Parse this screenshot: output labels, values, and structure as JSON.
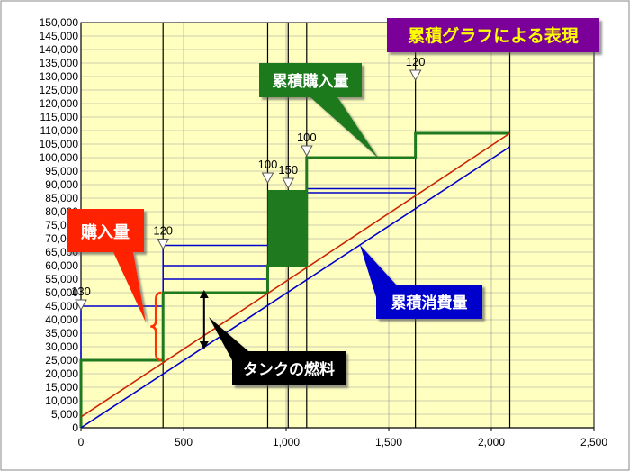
{
  "chart_data": {
    "type": "line",
    "title": "累積グラフによる表現",
    "xlim": [
      0,
      2500
    ],
    "ylim": [
      0,
      150000
    ],
    "x_ticks": [
      0,
      500,
      1000,
      1500,
      2000,
      2500
    ],
    "x_tick_labels": [
      "0",
      "500",
      "1,000",
      "1,500",
      "2,000",
      "2,500"
    ],
    "y_ticks": [
      0,
      5000,
      10000,
      15000,
      20000,
      25000,
      30000,
      35000,
      40000,
      45000,
      50000,
      55000,
      60000,
      65000,
      70000,
      75000,
      80000,
      85000,
      90000,
      95000,
      100000,
      105000,
      110000,
      115000,
      120000,
      125000,
      130000,
      135000,
      140000,
      145000,
      150000
    ],
    "y_tick_labels": [
      "0",
      "5,000",
      "10,000",
      "15,000",
      "20,000",
      "25,000",
      "30,000",
      "35,000",
      "40,000",
      "45,000",
      "50,000",
      "55,000",
      "60,000",
      "65,000",
      "70,000",
      "75,000",
      "80,000",
      "85,000",
      "90,000",
      "95,000",
      "100,000",
      "105,000",
      "110,000",
      "115,000",
      "120,000",
      "125,000",
      "130,000",
      "135,000",
      "140,000",
      "145,000",
      "150,000"
    ],
    "grid": true,
    "vertical_lines_x": [
      400,
      910,
      1010,
      1100,
      1630,
      2090
    ],
    "series": [
      {
        "name": "累積購入量",
        "color": "#1f7a1f",
        "step": true,
        "x": [
          0,
          0,
          400,
          400,
          910,
          910,
          1100,
          1100,
          1630,
          1630,
          2090
        ],
        "y": [
          0,
          25000,
          25000,
          50000,
          50000,
          60000,
          60000,
          100000,
          100000,
          109000,
          109000
        ]
      },
      {
        "name": "累積消費量",
        "color": "#0000cc",
        "x": [
          0,
          2090
        ],
        "y": [
          0,
          104000
        ]
      },
      {
        "color": "#cc2200",
        "x": [
          0,
          2090
        ],
        "y": [
          4000,
          109000
        ]
      }
    ],
    "planned_levels": [
      {
        "x0": 0,
        "x1": 400,
        "y": 45000
      },
      {
        "x0": 400,
        "x1": 910,
        "y": 55000
      },
      {
        "x0": 400,
        "x1": 910,
        "y": 60000
      },
      {
        "x0": 400,
        "x1": 910,
        "y": 67500
      },
      {
        "x0": 1100,
        "x1": 1630,
        "y": 87000
      },
      {
        "x0": 1100,
        "x1": 1630,
        "y": 88500
      }
    ],
    "purchase_block": {
      "x0": 910,
      "x1": 1100,
      "y0": 60000,
      "y1": 88000
    },
    "markers": [
      {
        "x": 0,
        "y": 45000,
        "label": "130"
      },
      {
        "x": 400,
        "y": 67500,
        "label": "120"
      },
      {
        "x": 910,
        "y": 92000,
        "label": "100"
      },
      {
        "x": 1010,
        "y": 90000,
        "label": "150"
      },
      {
        "x": 1100,
        "y": 102000,
        "label": "100"
      },
      {
        "x": 1630,
        "y": 130000,
        "label": "120"
      }
    ],
    "annotations": {
      "cumulative_purchase": "累積購入量",
      "purchase_amount": "購入量",
      "cumulative_consumption": "累積消費量",
      "tank_fuel": "タンクの燃料"
    }
  },
  "colors": {
    "plot_bg": "#ffffc0",
    "title_bg": "#7a0099",
    "title_fg": "#ffff00",
    "green": "#1f7a1f",
    "blue": "#0000cc",
    "red": "#cc2200"
  }
}
